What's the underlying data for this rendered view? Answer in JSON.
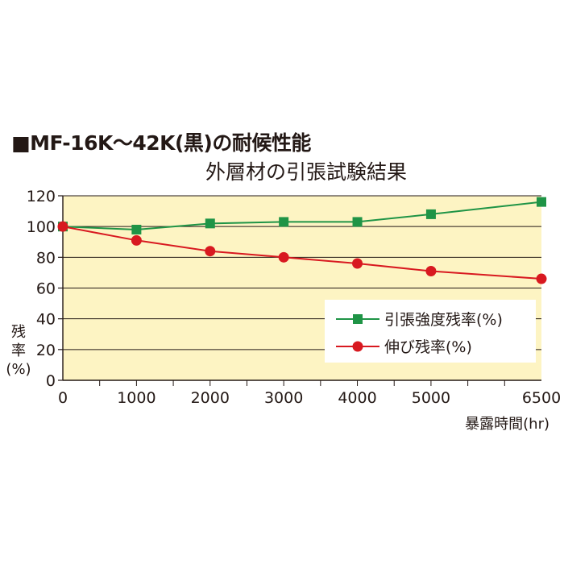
{
  "heading": "■MF-16K～42K(黒)の耐候性能",
  "chart_data": {
    "type": "line",
    "title": "外層材の引張試験結果",
    "xlabel": "暴露時間(hr)",
    "ylabel": [
      "残",
      "率",
      "(%)"
    ],
    "x": [
      0,
      1000,
      2000,
      3000,
      4000,
      5000,
      6500
    ],
    "x_tick_labels": [
      "0",
      "1000",
      "2000",
      "3000",
      "4000",
      "5000",
      "6500"
    ],
    "xlim": [
      0,
      6500
    ],
    "ylim": [
      0,
      120
    ],
    "y_ticks": [
      0,
      20,
      40,
      60,
      80,
      100,
      120
    ],
    "grid": "horizontal",
    "legend_position": "lower-right",
    "background_color": "#fdf4c3",
    "series": [
      {
        "name": "引張強度残率(%)",
        "color": "#1f9446",
        "marker": "square",
        "values": [
          100,
          98,
          102,
          103,
          103,
          108,
          116
        ]
      },
      {
        "name": "伸び残率(%)",
        "color": "#d81920",
        "marker": "circle",
        "values": [
          100,
          91,
          84,
          80,
          76,
          71,
          66
        ]
      }
    ]
  }
}
